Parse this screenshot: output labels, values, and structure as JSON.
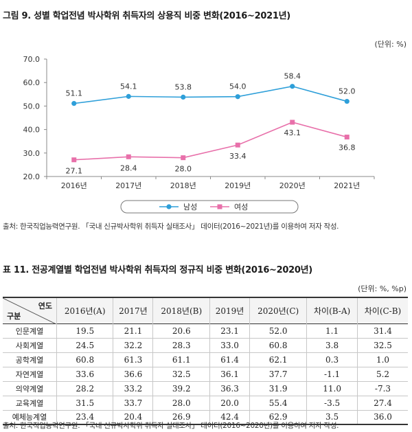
{
  "figure": {
    "title": "그림 9. 성별 학업전념 박사학위 취득자의 상용직 비중 변화(2016~2021년)",
    "unit": "(단위: %)",
    "source": "출처: 한국직업능력연구원. 「국내 신규박사학위 취득자 실태조사」 데이터(2016~2021년)를 이용하여 저자 작성."
  },
  "chart_data": {
    "type": "line",
    "title": "",
    "xlabel": "",
    "ylabel": "",
    "x": [
      "2016년",
      "2017년",
      "2018년",
      "2019년",
      "2020년",
      "2021년"
    ],
    "ylim": [
      20.0,
      70.0
    ],
    "yticks": [
      "20.0",
      "30.0",
      "40.0",
      "50.0",
      "60.0",
      "70.0"
    ],
    "grid": false,
    "legend": "bottom",
    "series": [
      {
        "name": "남성",
        "color": "#2e9fd9",
        "marker": "circle",
        "values": [
          51.1,
          54.1,
          53.8,
          54.0,
          58.4,
          52.0
        ],
        "labels": [
          "51.1",
          "54.1",
          "53.8",
          "54.0",
          "58.4",
          "52.0"
        ]
      },
      {
        "name": "여성",
        "color": "#e870aa",
        "marker": "square",
        "values": [
          27.1,
          28.4,
          28.0,
          33.4,
          43.1,
          36.8
        ],
        "labels": [
          "27.1",
          "28.4",
          "28.0",
          "33.4",
          "43.1",
          "36.8"
        ]
      }
    ]
  },
  "table": {
    "title": "표 11. 전공계열별 학업전념 박사학위 취득자의 정규직 비중 변화(2016~2020년)",
    "unit": "(단위: %, %p)",
    "corner_top": "연도",
    "corner_bottom": "구분",
    "columns": [
      "2016년(A)",
      "2017년",
      "2018년(B)",
      "2019년",
      "2020년(C)",
      "차이(B-A)",
      "차이(C-B)"
    ],
    "rows": [
      {
        "label": "인문계열",
        "cells": [
          "19.5",
          "21.1",
          "20.6",
          "23.1",
          "52.0",
          "1.1",
          "31.4"
        ]
      },
      {
        "label": "사회계열",
        "cells": [
          "24.5",
          "32.2",
          "28.3",
          "33.0",
          "60.8",
          "3.8",
          "32.5"
        ]
      },
      {
        "label": "공학계열",
        "cells": [
          "60.8",
          "61.3",
          "61.1",
          "61.4",
          "62.1",
          "0.3",
          "1.0"
        ]
      },
      {
        "label": "자연계열",
        "cells": [
          "33.6",
          "36.6",
          "32.5",
          "36.1",
          "37.7",
          "-1.1",
          "5.2"
        ]
      },
      {
        "label": "의약계열",
        "cells": [
          "28.2",
          "33.2",
          "39.2",
          "36.3",
          "31.9",
          "11.0",
          "-7.3"
        ]
      },
      {
        "label": "교육계열",
        "cells": [
          "31.5",
          "33.7",
          "28.0",
          "20.0",
          "55.4",
          "-3.5",
          "27.4"
        ]
      },
      {
        "label": "예체능계열",
        "cells": [
          "23.4",
          "20.4",
          "26.9",
          "42.4",
          "62.9",
          "3.5",
          "36.0"
        ]
      }
    ],
    "source": "출처: 한국직업능력연구원. 「국내 신규박사학위 취득자 실태조사」 데이터(2016~2020년)를 이용하여 저자 작성."
  }
}
